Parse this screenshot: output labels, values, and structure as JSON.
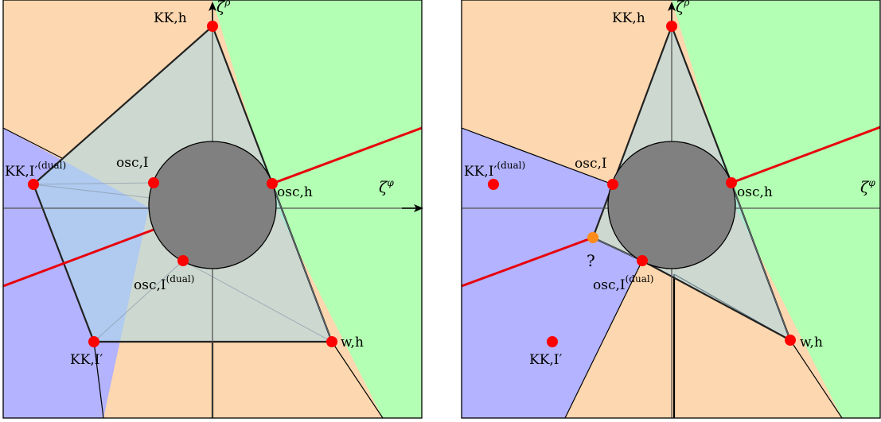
{
  "colors": {
    "orange_region": "#FDD7AF",
    "green_region": "#B3FFB3",
    "purple_region": "#B3B3FF",
    "polygon_fill": "#ADD8E6",
    "disk": "#808080",
    "point": "#FF0000",
    "unknown_point": "#FF8C1A",
    "red_line": "#E8000B"
  },
  "axes": {
    "vertical": {
      "symbol": "ζ",
      "superscript": "ρ"
    },
    "horizontal": {
      "symbol": "ζ",
      "superscript": "φ"
    }
  },
  "left_panel": {
    "points": {
      "kk_h": "KK,h",
      "osc_h": "osc,h",
      "osc_i": "osc,I",
      "kk_i_dual": {
        "base": "KK,I′",
        "sup": "(dual)"
      },
      "osc_i_dual": {
        "base": "osc,I",
        "sup": "(dual)"
      },
      "kk_i_prime": "KK,I′",
      "w_h": "w,h"
    }
  },
  "right_panel": {
    "points": {
      "kk_h": "KK,h",
      "osc_h": "osc,h",
      "osc_i": "osc,I",
      "kk_i_dual": {
        "base": "KK,I′",
        "sup": "(dual)"
      },
      "osc_i_dual": {
        "base": "osc,I",
        "sup": "(dual)"
      },
      "kk_i_prime": "KK,I′",
      "w_h": "w,h"
    },
    "unknown_label": "?"
  }
}
